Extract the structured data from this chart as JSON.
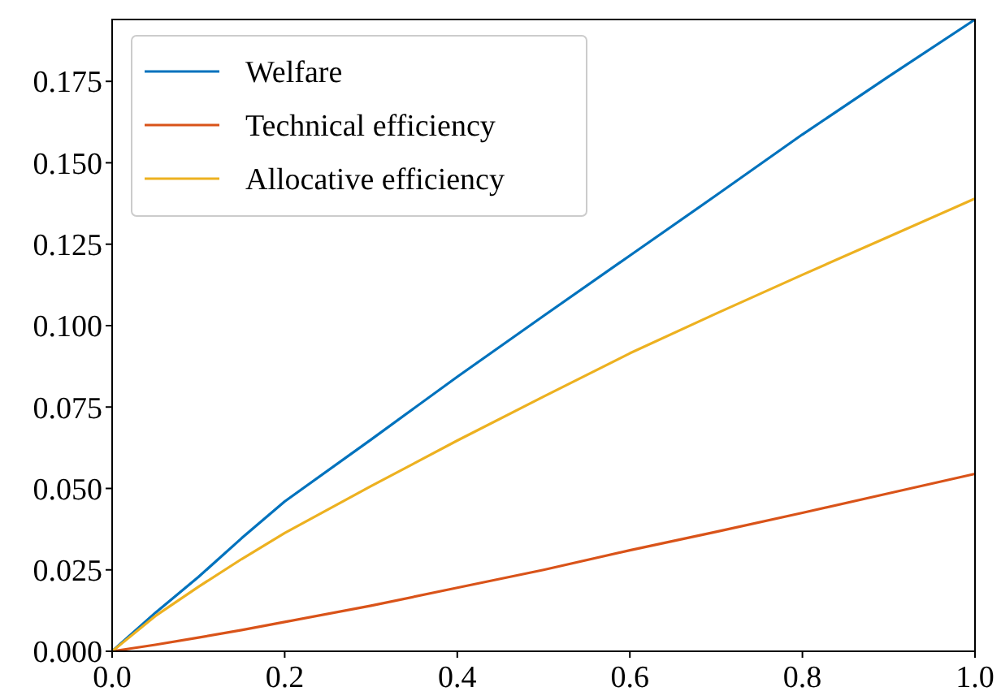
{
  "chart_data": {
    "type": "line",
    "x": [
      0,
      0.05,
      0.1,
      0.15,
      0.2,
      0.3,
      0.4,
      0.5,
      0.6,
      0.7,
      0.8,
      0.9,
      1.0
    ],
    "series": [
      {
        "name": "Welfare",
        "color": "#0072bd",
        "values": [
          0,
          0.0118,
          0.0228,
          0.0347,
          0.046,
          0.065,
          0.0843,
          0.103,
          0.1215,
          0.14,
          0.1587,
          0.1765,
          0.194
        ]
      },
      {
        "name": "Technical efficiency",
        "color": "#d95319",
        "values": [
          0,
          0.002,
          0.0042,
          0.0065,
          0.009,
          0.014,
          0.0195,
          0.025,
          0.031,
          0.0367,
          0.0425,
          0.0485,
          0.0545
        ]
      },
      {
        "name": "Allocative efficiency",
        "color": "#edb120",
        "values": [
          0,
          0.0108,
          0.0198,
          0.0283,
          0.0363,
          0.0507,
          0.0647,
          0.0782,
          0.0915,
          0.1037,
          0.1156,
          0.1273,
          0.139
        ]
      }
    ],
    "xlim": [
      0,
      1
    ],
    "ylim": [
      0,
      0.194
    ],
    "xticks": [
      {
        "value": 0,
        "label": "0.0"
      },
      0.2,
      0.4,
      0.6,
      0.8,
      {
        "value": 1,
        "label": "1.0"
      }
    ],
    "yticks": [
      {
        "value": 0,
        "label": "0.000"
      },
      {
        "value": 0.025,
        "label": "0.025"
      },
      {
        "value": 0.05,
        "label": "0.050"
      },
      {
        "value": 0.075,
        "label": "0.075"
      },
      {
        "value": 0.1,
        "label": "0.100"
      },
      {
        "value": 0.125,
        "label": "0.125"
      },
      {
        "value": 0.15,
        "label": "0.150"
      },
      {
        "value": 0.175,
        "label": "0.175"
      }
    ],
    "legend": "top left",
    "grid": false
  }
}
